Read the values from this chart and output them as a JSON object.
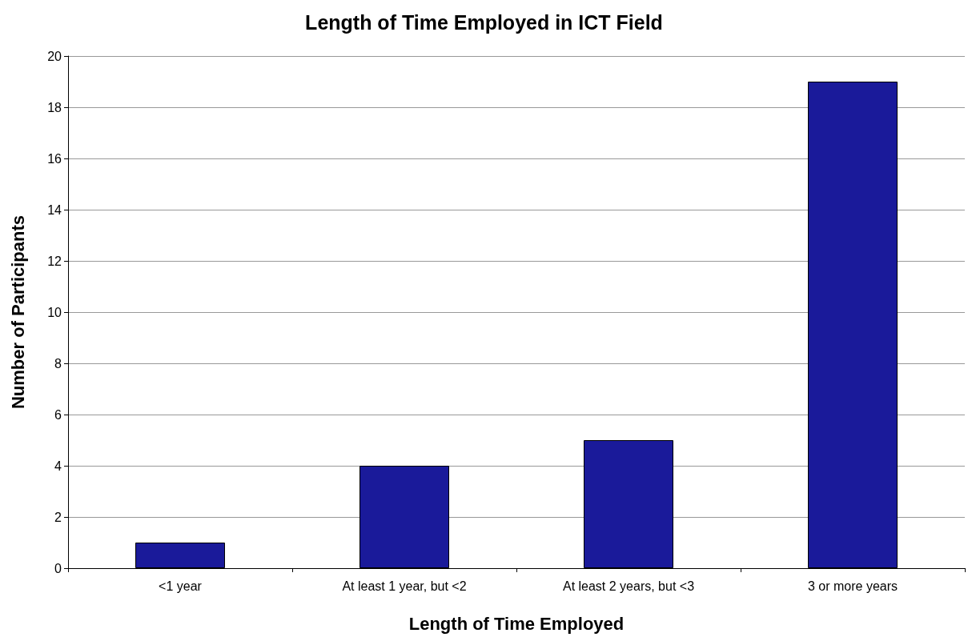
{
  "chart_data": {
    "type": "bar",
    "title": "Length of Time Employed in ICT Field",
    "xlabel": "Length of Time Employed",
    "ylabel": "Number of Participants",
    "categories": [
      "<1 year",
      "At least 1 year, but <2",
      "At least 2 years, but <3",
      "3 or more years"
    ],
    "values": [
      1,
      4,
      5,
      19
    ],
    "color": "#1a1a9a",
    "ylim": [
      0,
      20
    ],
    "yticks": [
      0,
      2,
      4,
      6,
      8,
      10,
      12,
      14,
      16,
      18,
      20
    ],
    "grid": "y"
  }
}
